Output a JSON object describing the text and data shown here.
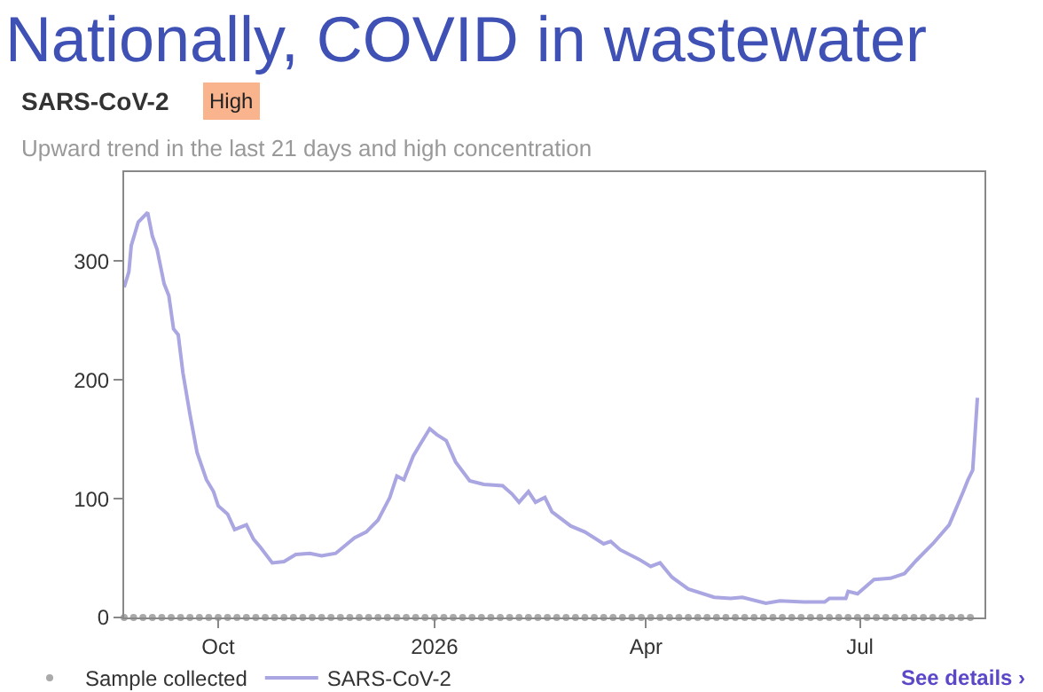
{
  "chart_data": {
    "type": "line",
    "title": "Nationally, COVID in wastewater",
    "subtitle": "Upward trend in the last 21 days and high concentration",
    "annotations": [
      "SARS-CoV-2",
      "High",
      "See details ›"
    ],
    "xlim": [
      "2025-08-22",
      "2026-08-23"
    ],
    "xticks": [
      {
        "value": "2025-10-01",
        "label": "Oct"
      },
      {
        "value": "2026-01-01",
        "label": "2026"
      },
      {
        "value": "2026-04-01",
        "label": "Apr"
      },
      {
        "value": "2026-07-01",
        "label": "Jul"
      }
    ],
    "ylim": [
      0,
      375
    ],
    "yticks": [
      0,
      100,
      200,
      300
    ],
    "grid": false,
    "legend": "bottom",
    "series": [
      {
        "name": "Sample collected",
        "type": "scatter",
        "marker": "circle",
        "color": "#aaaaaa",
        "x": [
          "2025-08-22",
          "2025-08-26",
          "2025-08-30",
          "2025-09-03",
          "2025-09-07",
          "2025-09-11",
          "2025-09-15",
          "2025-09-19",
          "2025-09-23",
          "2025-09-27",
          "2025-10-01",
          "2025-10-05",
          "2025-10-09",
          "2025-10-13",
          "2025-10-17",
          "2025-10-21",
          "2025-10-25",
          "2025-10-29",
          "2025-11-02",
          "2025-11-06",
          "2025-11-10",
          "2025-11-14",
          "2025-11-18",
          "2025-11-22",
          "2025-11-26",
          "2025-11-30",
          "2025-12-04",
          "2025-12-08",
          "2025-12-12",
          "2025-12-16",
          "2025-12-20",
          "2025-12-24",
          "2025-12-28",
          "2026-01-01",
          "2026-01-05",
          "2026-01-09",
          "2026-01-13",
          "2026-01-17",
          "2026-01-21",
          "2026-01-25",
          "2026-01-29",
          "2026-02-02",
          "2026-02-06",
          "2026-02-10",
          "2026-02-14",
          "2026-02-18",
          "2026-02-22",
          "2026-02-26",
          "2026-03-02",
          "2026-03-06",
          "2026-03-10",
          "2026-03-14",
          "2026-03-18",
          "2026-03-22",
          "2026-03-26",
          "2026-03-30",
          "2026-04-03",
          "2026-04-07",
          "2026-04-11",
          "2026-04-15",
          "2026-04-19",
          "2026-04-23",
          "2026-04-27",
          "2026-05-01",
          "2026-05-05",
          "2026-05-09",
          "2026-05-13",
          "2026-05-17",
          "2026-05-21",
          "2026-05-25",
          "2026-05-29",
          "2026-06-02",
          "2026-06-06",
          "2026-06-10",
          "2026-06-14",
          "2026-06-18",
          "2026-06-22",
          "2026-06-26",
          "2026-06-30",
          "2026-07-04",
          "2026-07-08",
          "2026-07-12",
          "2026-07-16",
          "2026-07-20",
          "2026-07-24",
          "2026-07-28",
          "2026-08-01",
          "2026-08-05",
          "2026-08-09",
          "2026-08-13",
          "2026-08-17"
        ],
        "values": [
          0,
          0,
          0,
          0,
          0,
          0,
          0,
          0,
          0,
          0,
          0,
          0,
          0,
          0,
          0,
          0,
          0,
          0,
          0,
          0,
          0,
          0,
          0,
          0,
          0,
          0,
          0,
          0,
          0,
          0,
          0,
          0,
          0,
          0,
          0,
          0,
          0,
          0,
          0,
          0,
          0,
          0,
          0,
          0,
          0,
          0,
          0,
          0,
          0,
          0,
          0,
          0,
          0,
          0,
          0,
          0,
          0,
          0,
          0,
          0,
          0,
          0,
          0,
          0,
          0,
          0,
          0,
          0,
          0,
          0,
          0,
          0,
          0,
          0,
          0,
          0,
          0,
          0,
          0,
          0,
          0,
          0,
          0,
          0,
          0,
          0,
          0,
          0,
          0,
          0,
          0
        ]
      },
      {
        "name": "SARS-CoV-2",
        "marker": "none",
        "line_style": "solid",
        "color": "#aaa6e2",
        "x": [
          "2025-08-22",
          "2025-08-24",
          "2025-08-25",
          "2025-08-28",
          "2025-09-01",
          "2025-09-03",
          "2025-09-05",
          "2025-09-08",
          "2025-09-10",
          "2025-09-12",
          "2025-09-14",
          "2025-09-16",
          "2025-09-19",
          "2025-09-22",
          "2025-09-26",
          "2025-09-29",
          "2025-10-01",
          "2025-10-05",
          "2025-10-08",
          "2025-10-13",
          "2025-10-16",
          "2025-10-19",
          "2025-10-24",
          "2025-10-29",
          "2025-11-03",
          "2025-11-09",
          "2025-11-14",
          "2025-11-20",
          "2025-11-28",
          "2025-12-03",
          "2025-12-08",
          "2025-12-13",
          "2025-12-16",
          "2025-12-19",
          "2025-12-23",
          "2025-12-26",
          "2025-12-30",
          "2026-01-02",
          "2026-01-06",
          "2026-01-10",
          "2026-01-16",
          "2026-01-22",
          "2026-01-30",
          "2026-02-03",
          "2026-02-06",
          "2026-02-10",
          "2026-02-13",
          "2026-02-17",
          "2026-02-20",
          "2026-02-28",
          "2026-03-06",
          "2026-03-14",
          "2026-03-17",
          "2026-03-21",
          "2026-03-29",
          "2026-04-03",
          "2026-04-07",
          "2026-04-12",
          "2026-04-19",
          "2026-04-30",
          "2026-05-07",
          "2026-05-12",
          "2026-05-22",
          "2026-05-28",
          "2026-06-07",
          "2026-06-16",
          "2026-06-18",
          "2026-06-25",
          "2026-06-26",
          "2026-06-30",
          "2026-07-07",
          "2026-07-14",
          "2026-07-20",
          "2026-07-25",
          "2026-08-01",
          "2026-08-08",
          "2026-08-14",
          "2026-08-16",
          "2026-08-18",
          "2026-08-20"
        ],
        "values": [
          278,
          291,
          313,
          333,
          341,
          321,
          310,
          281,
          271,
          243,
          238,
          206,
          171,
          139,
          116,
          106,
          94,
          87,
          74,
          78,
          66,
          59,
          46,
          47,
          53,
          54,
          52,
          54,
          67,
          72,
          82,
          101,
          119,
          116,
          136,
          146,
          159,
          154,
          149,
          131,
          115,
          112,
          111,
          104,
          97,
          106,
          97,
          101,
          89,
          77,
          72,
          62,
          64,
          57,
          49,
          43,
          46,
          34,
          24,
          17,
          16,
          17,
          12,
          14,
          13,
          13,
          16,
          16,
          22,
          20,
          32,
          33,
          37,
          48,
          62,
          78,
          106,
          116,
          124,
          185
        ]
      }
    ]
  }
}
